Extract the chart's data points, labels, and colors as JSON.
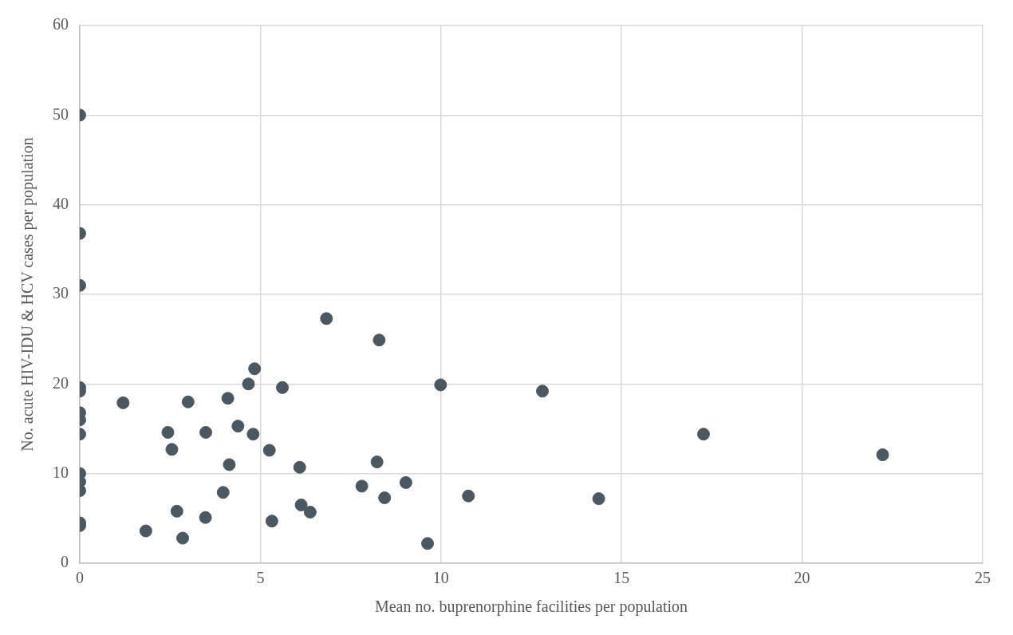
{
  "chart_data": {
    "type": "scatter",
    "xlabel": "Mean no. buprenorphine facilities per population",
    "ylabel": "No. acute HIV-IDU & HCV cases per population",
    "x": [
      0,
      0,
      0,
      0,
      0,
      0,
      0,
      0,
      0,
      0,
      0,
      0,
      0,
      1.2,
      3.0,
      4.1,
      4.84,
      4.67,
      5.61,
      2.44,
      3.49,
      4.38,
      4.8,
      2.55,
      5.25,
      4.14,
      6.09,
      3.97,
      2.69,
      3.48,
      5.32,
      1.83,
      2.85,
      6.13,
      6.83,
      8.29,
      9.99,
      12.81,
      8.23,
      7.81,
      8.44,
      9.03,
      9.63,
      10.76,
      6.38,
      17.27,
      22.23,
      14.37
    ],
    "values": [
      50.0,
      36.8,
      31.0,
      19.6,
      19.2,
      16.8,
      16.0,
      14.4,
      10.0,
      9.1,
      8.1,
      4.5,
      4.2,
      17.9,
      18.0,
      18.4,
      21.7,
      20.0,
      19.6,
      14.6,
      14.6,
      15.3,
      14.4,
      12.7,
      12.6,
      11.0,
      10.7,
      7.9,
      5.8,
      5.1,
      4.7,
      3.6,
      2.8,
      6.5,
      27.3,
      24.9,
      19.9,
      19.2,
      11.3,
      8.6,
      7.3,
      9.0,
      2.2,
      7.5,
      5.7,
      14.4,
      12.1,
      7.2
    ],
    "color": "#4a5961",
    "marker": "circle",
    "xlim": [
      0,
      25
    ],
    "xticks": [
      0,
      5,
      10,
      15,
      20,
      25
    ],
    "ylim": [
      0,
      60
    ],
    "yticks": [
      0,
      10,
      20,
      30,
      40,
      50,
      60
    ],
    "grid": true
  }
}
